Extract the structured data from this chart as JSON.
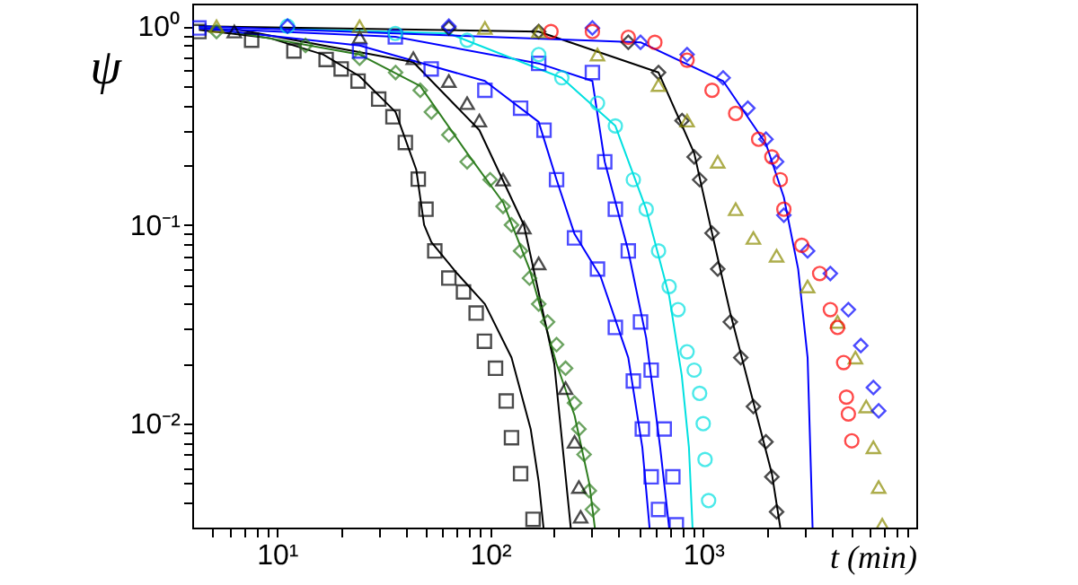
{
  "chart_data": {
    "type": "scatter",
    "xlabel": "t (min)",
    "ylabel": "ψ",
    "log": "xy",
    "grid": false,
    "xlim": [
      4,
      10000
    ],
    "ylim": [
      0.003,
      1.3
    ],
    "xticks": [
      {
        "value": 5,
        "label": null
      },
      {
        "value": 6,
        "label": null
      },
      {
        "value": 7,
        "label": null
      },
      {
        "value": 8,
        "label": null
      },
      {
        "value": 9,
        "label": null
      },
      {
        "value": 10,
        "label": "10¹"
      },
      {
        "value": 20,
        "label": null
      },
      {
        "value": 30,
        "label": null
      },
      {
        "value": 40,
        "label": null
      },
      {
        "value": 50,
        "label": null
      },
      {
        "value": 60,
        "label": null
      },
      {
        "value": 70,
        "label": null
      },
      {
        "value": 80,
        "label": null
      },
      {
        "value": 90,
        "label": null
      },
      {
        "value": 100,
        "label": "10²"
      },
      {
        "value": 200,
        "label": null
      },
      {
        "value": 300,
        "label": null
      },
      {
        "value": 400,
        "label": null
      },
      {
        "value": 500,
        "label": null
      },
      {
        "value": 600,
        "label": null
      },
      {
        "value": 700,
        "label": null
      },
      {
        "value": 800,
        "label": null
      },
      {
        "value": 900,
        "label": null
      },
      {
        "value": 1000,
        "label": "10³"
      },
      {
        "value": 2000,
        "label": null
      },
      {
        "value": 3000,
        "label": null
      },
      {
        "value": 4000,
        "label": null
      },
      {
        "value": 5000,
        "label": null
      },
      {
        "value": 6000,
        "label": null
      },
      {
        "value": 7000,
        "label": null
      },
      {
        "value": 8000,
        "label": null
      },
      {
        "value": 9000,
        "label": null
      }
    ],
    "yticks": [
      {
        "value": 0.004,
        "label": null
      },
      {
        "value": 0.005,
        "label": null
      },
      {
        "value": 0.006,
        "label": null
      },
      {
        "value": 0.007,
        "label": null
      },
      {
        "value": 0.008,
        "label": null
      },
      {
        "value": 0.009,
        "label": null
      },
      {
        "value": 0.01,
        "label": "10⁻²"
      },
      {
        "value": 0.02,
        "label": null
      },
      {
        "value": 0.03,
        "label": null
      },
      {
        "value": 0.04,
        "label": null
      },
      {
        "value": 0.05,
        "label": null
      },
      {
        "value": 0.06,
        "label": null
      },
      {
        "value": 0.07,
        "label": null
      },
      {
        "value": 0.08,
        "label": null
      },
      {
        "value": 0.09,
        "label": null
      },
      {
        "value": 0.1,
        "label": "10⁻¹"
      },
      {
        "value": 0.2,
        "label": null
      },
      {
        "value": 0.3,
        "label": null
      },
      {
        "value": 0.4,
        "label": null
      },
      {
        "value": 0.5,
        "label": null
      },
      {
        "value": 0.6,
        "label": null
      },
      {
        "value": 0.7,
        "label": null
      },
      {
        "value": 0.8,
        "label": null
      },
      {
        "value": 0.9,
        "label": null
      },
      {
        "value": 1,
        "label": "10⁰"
      }
    ],
    "series": [
      {
        "type": "scatter",
        "marker": "square",
        "color": "#000000",
        "x": [
          4.3,
          7.6,
          12,
          17,
          20,
          24,
          30,
          35,
          40,
          46,
          50,
          55,
          64,
          75,
          86,
          94,
          106,
          119,
          126,
          139,
          159
        ],
        "values": [
          0.94,
          0.85,
          0.75,
          0.68,
          0.61,
          0.53,
          0.43,
          0.35,
          0.26,
          0.17,
          0.12,
          0.074,
          0.054,
          0.046,
          0.036,
          0.026,
          0.019,
          0.013,
          0.0085,
          0.0056,
          0.0033
        ]
      },
      {
        "type": "line",
        "color": "#000000",
        "x": [
          4.3,
          9.3,
          16.5,
          24.4,
          36,
          45,
          49,
          53,
          70,
          94.5,
          126,
          155,
          169,
          178
        ],
        "values": [
          0.96,
          0.87,
          0.72,
          0.56,
          0.37,
          0.19,
          0.1,
          0.082,
          0.057,
          0.04,
          0.0215,
          0.0094,
          0.0051,
          0.003
        ]
      },
      {
        "type": "scatter",
        "marker": "diamond",
        "color": "#2e7d1f",
        "x": [
          5.2,
          13.6,
          24.4,
          36,
          47,
          53,
          64,
          78,
          100,
          115,
          126,
          139,
          153,
          169,
          186,
          205,
          226,
          249,
          261,
          276,
          292,
          302
        ],
        "values": [
          0.94,
          0.8,
          0.69,
          0.585,
          0.476,
          0.37,
          0.284,
          0.208,
          0.169,
          0.124,
          0.1,
          0.074,
          0.054,
          0.04,
          0.0325,
          0.025,
          0.019,
          0.0127,
          0.0094,
          0.007,
          0.0046,
          0.0037
        ]
      },
      {
        "type": "line",
        "color": "#2e7d1f",
        "x": [
          5.2,
          24.4,
          47,
          78,
          115,
          153,
          205,
          249,
          292,
          310
        ],
        "values": [
          0.97,
          0.72,
          0.5,
          0.23,
          0.13,
          0.06,
          0.02,
          0.011,
          0.005,
          0.003
        ]
      },
      {
        "type": "scatter",
        "marker": "triangle",
        "color": "#000000",
        "x": [
          6.3,
          24.4,
          43.6,
          64,
          78,
          89,
          115,
          144,
          169,
          226,
          249,
          261,
          266
        ],
        "values": [
          0.94,
          0.88,
          0.69,
          0.53,
          0.41,
          0.335,
          0.169,
          0.097,
          0.064,
          0.0151,
          0.0081,
          0.0048,
          0.0034
        ]
      },
      {
        "type": "line",
        "color": "#000000",
        "x": [
          6.3,
          43.6,
          89,
          144,
          200,
          239
        ],
        "values": [
          0.97,
          0.66,
          0.3,
          0.1,
          0.02,
          0.003
        ]
      },
      {
        "type": "scatter",
        "marker": "square",
        "color": "#0000ff",
        "x": [
          24.4,
          52.9,
          94.5,
          139,
          179,
          205,
          249,
          319,
          387,
          470,
          518,
          570,
          617
        ],
        "values": [
          0.75,
          0.61,
          0.476,
          0.387,
          0.3,
          0.169,
          0.086,
          0.06,
          0.0305,
          0.0164,
          0.0094,
          0.0054,
          0.0037
        ]
      },
      {
        "type": "line",
        "color": "#0000ff",
        "x": [
          4.3,
          24.4,
          94.5,
          169,
          205,
          249,
          330,
          445,
          518,
          560
        ],
        "values": [
          0.98,
          0.8,
          0.53,
          0.33,
          0.169,
          0.09,
          0.055,
          0.0215,
          0.0076,
          0.003
        ]
      },
      {
        "type": "scatter",
        "marker": "square",
        "color": "#0000ff",
        "x": [
          4.3,
          35.9,
          169,
          302,
          345,
          387,
          445,
          508,
          570,
          656,
          720,
          748
        ],
        "values": [
          0.98,
          0.884,
          0.65,
          0.585,
          0.208,
          0.12,
          0.074,
          0.0325,
          0.0186,
          0.0094,
          0.0054,
          0.0031
        ]
      },
      {
        "type": "line",
        "color": "#0000ff",
        "x": [
          4.3,
          35.9,
          169,
          302,
          345,
          445,
          540,
          628,
          692
        ],
        "values": [
          0.98,
          0.884,
          0.65,
          0.53,
          0.208,
          0.074,
          0.027,
          0.0076,
          0.003
        ]
      },
      {
        "type": "scatter",
        "marker": "circle",
        "color": "#00e0e0",
        "x": [
          11.2,
          35.9,
          78,
          169,
          217,
          319,
          387,
          470,
          540,
          617,
          692,
          762,
          840,
          907,
          962,
          1000,
          1020,
          1060
        ],
        "values": [
          1,
          0.92,
          0.85,
          0.72,
          0.55,
          0.41,
          0.315,
          0.169,
          0.12,
          0.074,
          0.049,
          0.0375,
          0.023,
          0.0186,
          0.0142,
          0.01,
          0.0066,
          0.0041
        ]
      },
      {
        "type": "line",
        "color": "#00e0e0",
        "x": [
          4.3,
          64,
          217,
          387,
          540,
          692,
          793,
          857,
          891
        ],
        "values": [
          1,
          0.92,
          0.55,
          0.315,
          0.12,
          0.044,
          0.0175,
          0.0076,
          0.003
        ]
      },
      {
        "type": "scatter",
        "marker": "diamond",
        "color": "#000000",
        "x": [
          64,
          169,
          445,
          617,
          796,
          907,
          962,
          1100,
          1170,
          1340,
          1500,
          1720,
          1970,
          2100,
          2210
        ],
        "values": [
          0.98,
          0.94,
          0.83,
          0.585,
          0.335,
          0.22,
          0.169,
          0.091,
          0.06,
          0.0325,
          0.0215,
          0.0122,
          0.0081,
          0.0054,
          0.0036
        ]
      },
      {
        "type": "line",
        "color": "#000000",
        "x": [
          4.3,
          169,
          617,
          907,
          1100,
          1340,
          1720,
          2100,
          2300
        ],
        "values": [
          1,
          0.94,
          0.585,
          0.23,
          0.091,
          0.036,
          0.0128,
          0.0056,
          0.003
        ]
      },
      {
        "type": "scatter",
        "marker": "triangle",
        "color": "#8b8b00",
        "x": [
          5.2,
          24.4,
          94.5,
          169,
          319,
          617,
          840,
          1170,
          1420,
          1720,
          2210,
          3090,
          4270,
          5180,
          5820,
          6290,
          6660,
          6920
        ],
        "values": [
          1,
          1,
          0.98,
          0.94,
          0.72,
          0.506,
          0.335,
          0.208,
          0.12,
          0.086,
          0.07,
          0.049,
          0.0325,
          0.0215,
          0.0122,
          0.0076,
          0.0048,
          0.0031
        ]
      },
      {
        "type": "scatter",
        "marker": "diamond",
        "color": "#0000ff",
        "x": [
          11.2,
          64,
          302,
          508,
          840,
          1240,
          1620,
          1970,
          2210,
          2390,
          3090,
          3950,
          4800,
          5490,
          6290,
          6660
        ],
        "values": [
          1,
          1,
          0.98,
          0.83,
          0.72,
          0.55,
          0.387,
          0.27,
          0.208,
          0.112,
          0.074,
          0.057,
          0.0375,
          0.0247,
          0.0152,
          0.0116
        ]
      },
      {
        "type": "line",
        "color": "#0000ff",
        "x": [
          4.3,
          508,
          1240,
          1970,
          2390,
          2790,
          3090,
          3260
        ],
        "values": [
          1,
          0.83,
          0.53,
          0.256,
          0.138,
          0.06,
          0.0215,
          0.003
        ]
      },
      {
        "type": "scatter",
        "marker": "circle",
        "color": "#ff0000",
        "x": [
          193,
          302,
          445,
          593,
          840,
          1100,
          1420,
          1820,
          2100,
          2300,
          2390,
          2900,
          3520,
          3950,
          4270,
          4560,
          4700,
          4800,
          4980
        ],
        "values": [
          0.94,
          0.94,
          0.88,
          0.83,
          0.675,
          0.476,
          0.364,
          0.27,
          0.22,
          0.169,
          0.12,
          0.079,
          0.057,
          0.0375,
          0.0305,
          0.0203,
          0.0136,
          0.0112,
          0.0082
        ]
      }
    ]
  }
}
